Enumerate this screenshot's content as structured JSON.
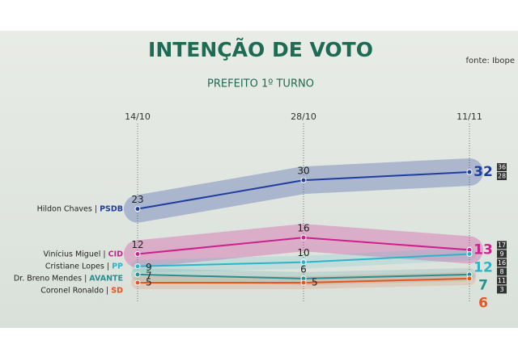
{
  "chart_data": {
    "type": "line",
    "title": "INTENÇÃO DE VOTO",
    "subtitle": "PREFEITO 1º TURNO",
    "source": "fonte: Ibope",
    "categories": [
      "14/10",
      "28/10",
      "11/11"
    ],
    "series": [
      {
        "name": "Hildon Chaves",
        "party": "PSDB",
        "color": "#1f3d9e",
        "values": [
          23,
          30,
          32
        ],
        "interval": [
          36,
          28
        ]
      },
      {
        "name": "Vinícius Miguel",
        "party": "CID",
        "color": "#cf1f8e",
        "values": [
          12,
          16,
          13
        ],
        "interval": [
          17,
          9
        ]
      },
      {
        "name": "Cristiane Lopes",
        "party": "PP",
        "color": "#2cb5c9",
        "values": [
          9,
          10,
          12
        ],
        "interval": [
          16,
          8
        ]
      },
      {
        "name": "Dr. Breno Mendes",
        "party": "AVANTE",
        "color": "#2a8f8f",
        "values": [
          7,
          6,
          7
        ],
        "interval": [
          11,
          3
        ]
      },
      {
        "name": "Coronel Ronaldo",
        "party": "SD",
        "color": "#e8541c",
        "values": [
          5,
          5,
          6
        ]
      }
    ]
  }
}
